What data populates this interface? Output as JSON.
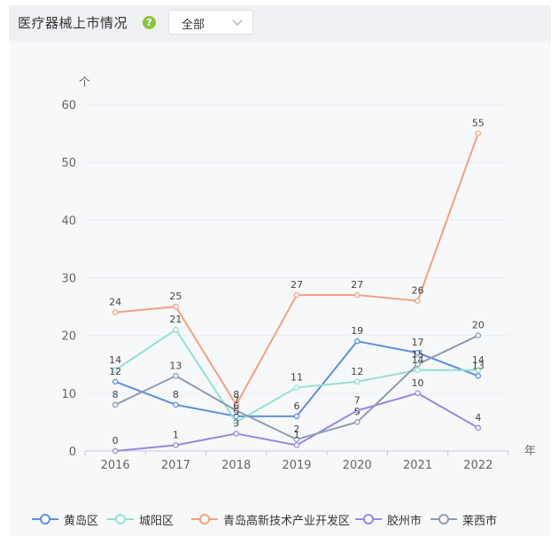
{
  "header": {
    "title": "医疗器械上市情况",
    "help_icon": "?",
    "select_value": "全部"
  },
  "chart_data": {
    "type": "line",
    "y_unit": "个",
    "x_unit": "年",
    "categories": [
      "2016",
      "2017",
      "2018",
      "2019",
      "2020",
      "2021",
      "2022"
    ],
    "ylim": [
      0,
      60
    ],
    "yticks": [
      "0",
      "10",
      "20",
      "30",
      "40",
      "50",
      "60"
    ],
    "grid": true,
    "legend_position": "bottom",
    "series": [
      {
        "name": "黄岛区",
        "color": "#5b8fe6",
        "values": [
          12,
          8,
          6,
          6,
          19,
          17,
          13
        ]
      },
      {
        "name": "城阳区",
        "color": "#8fe3cc",
        "values": [
          14,
          21,
          5,
          11,
          12,
          14,
          14
        ]
      },
      {
        "name": "青岛高新技术产业开发区",
        "color": "#f5a07c",
        "values": [
          24,
          25,
          8,
          27,
          27,
          26,
          55
        ]
      },
      {
        "name": "胶州市",
        "color": "#9b85e8",
        "values": [
          0,
          1,
          3,
          1,
          7,
          10,
          4
        ]
      },
      {
        "name": "莱西市",
        "color": "#8c9cb3",
        "values": [
          8,
          13,
          7,
          2,
          5,
          15,
          20
        ]
      }
    ]
  }
}
